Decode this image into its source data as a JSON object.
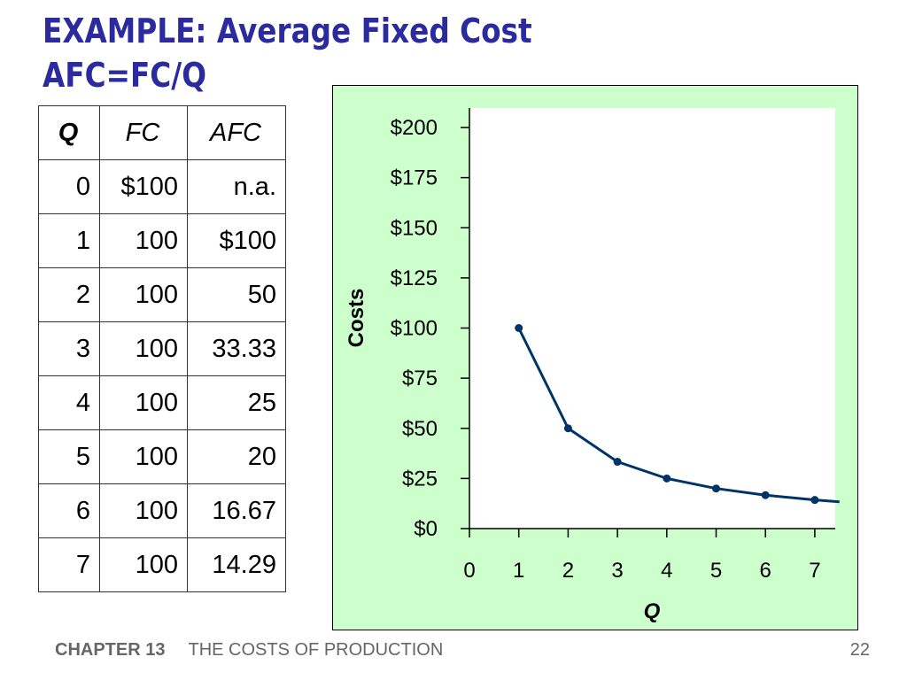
{
  "title": {
    "line1": "EXAMPLE:  Average Fixed Cost",
    "line2": "AFC=FC/Q"
  },
  "table": {
    "headers": [
      "Q",
      "FC",
      "AFC"
    ],
    "rows": [
      [
        "0",
        "$100",
        "n.a."
      ],
      [
        "1",
        "100",
        "$100"
      ],
      [
        "2",
        "100",
        "50"
      ],
      [
        "3",
        "100",
        "33.33"
      ],
      [
        "4",
        "100",
        "25"
      ],
      [
        "5",
        "100",
        "20"
      ],
      [
        "6",
        "100",
        "16.67"
      ],
      [
        "7",
        "100",
        "14.29"
      ]
    ]
  },
  "chart_data": {
    "type": "line",
    "title": "",
    "xlabel": "Q",
    "ylabel": "Costs",
    "xlim": [
      0,
      7.4
    ],
    "ylim": [
      0,
      200
    ],
    "x_ticks": [
      "0",
      "1",
      "2",
      "3",
      "4",
      "5",
      "6",
      "7"
    ],
    "y_ticks": [
      "$0",
      "$25",
      "$50",
      "$75",
      "$100",
      "$125",
      "$150",
      "$175",
      "$200"
    ],
    "series": [
      {
        "x": [
          1,
          2,
          3,
          4,
          5,
          6,
          7
        ],
        "values": [
          100,
          50,
          33.33,
          25,
          20,
          16.67,
          14.29
        ],
        "line_end": {
          "x": 7.5,
          "y": 13.33
        },
        "color": "#003366"
      }
    ],
    "plot_background": "#ffffff",
    "panel_background": "#ccffcc",
    "grid": false,
    "legend": "none"
  },
  "footer": {
    "chapter": "CHAPTER 13",
    "subject": "THE COSTS OF PRODUCTION",
    "page": "22"
  },
  "colors": {
    "title": "#2b2b9f",
    "curve": "#003366",
    "panel": "#ccffcc"
  }
}
